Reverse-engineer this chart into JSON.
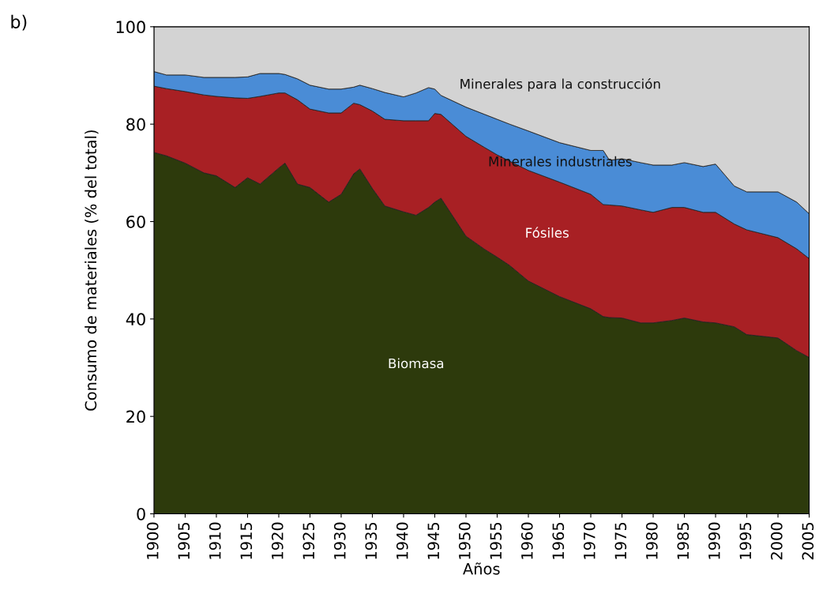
{
  "chart_data": {
    "type": "area",
    "stacked": true,
    "xlabel": "Años",
    "ylabel": "Consumo de materiales (% del total)",
    "annotations": [
      "b)"
    ],
    "x": [
      1900,
      1902,
      1905,
      1908,
      1910,
      1913,
      1915,
      1917,
      1920,
      1921,
      1923,
      1925,
      1928,
      1930,
      1932,
      1933,
      1935,
      1937,
      1940,
      1942,
      1944,
      1945,
      1946,
      1950,
      1953,
      1955,
      1957,
      1960,
      1965,
      1970,
      1972,
      1973,
      1975,
      1978,
      1980,
      1983,
      1985,
      1988,
      1990,
      1993,
      1995,
      2000,
      2003,
      2005
    ],
    "xlim": [
      1900,
      2005
    ],
    "xticks": [
      1900,
      1905,
      1910,
      1915,
      1920,
      1925,
      1930,
      1935,
      1940,
      1945,
      1950,
      1955,
      1960,
      1965,
      1970,
      1975,
      1980,
      1985,
      1990,
      1995,
      2000,
      2005
    ],
    "ylim": [
      0,
      100
    ],
    "yticks": [
      0,
      20,
      40,
      60,
      80,
      100
    ],
    "grid": false,
    "legend": false,
    "series": [
      {
        "name": "Biomasa",
        "color": "#2d3a0c",
        "values": [
          74.2,
          73.5,
          72.0,
          70.0,
          69.4,
          67.0,
          69.0,
          67.7,
          71.0,
          72.0,
          67.7,
          67.0,
          64.0,
          65.6,
          69.8,
          70.8,
          66.8,
          63.2,
          62.0,
          61.3,
          62.9,
          64.0,
          64.8,
          57.0,
          54.3,
          52.7,
          51.0,
          47.8,
          44.6,
          42.1,
          40.5,
          40.3,
          40.2,
          39.2,
          39.2,
          39.7,
          40.2,
          39.4,
          39.2,
          38.4,
          36.8,
          36.1,
          33.5,
          32.1
        ]
      },
      {
        "name": "Fósiles",
        "color": "#a82024",
        "values": [
          13.6,
          13.8,
          14.7,
          16.0,
          16.3,
          18.4,
          16.3,
          18.0,
          15.4,
          14.4,
          17.3,
          16.1,
          18.3,
          16.7,
          14.5,
          13.2,
          15.9,
          17.8,
          18.7,
          19.4,
          17.8,
          18.2,
          17.2,
          20.5,
          20.9,
          21.0,
          21.4,
          22.7,
          23.5,
          23.5,
          23.0,
          23.1,
          23.0,
          23.2,
          22.7,
          23.2,
          22.7,
          22.5,
          22.7,
          21.1,
          21.5,
          20.6,
          20.9,
          20.3
        ]
      },
      {
        "name": "Minerales industriales",
        "color": "#4a8cd6",
        "values": [
          3.0,
          2.8,
          3.4,
          3.6,
          3.9,
          4.2,
          4.4,
          4.7,
          4.0,
          3.8,
          4.3,
          4.9,
          4.9,
          4.9,
          3.3,
          4.0,
          4.6,
          5.5,
          4.9,
          5.7,
          6.8,
          5.0,
          3.9,
          6.0,
          6.8,
          7.3,
          7.6,
          8.1,
          8.1,
          9.0,
          11.1,
          9.2,
          9.7,
          9.7,
          9.7,
          8.7,
          9.2,
          9.4,
          9.9,
          7.8,
          7.8,
          9.4,
          9.6,
          9.2
        ]
      },
      {
        "name": "Minerales para la construcción",
        "color": "#d3d3d3",
        "values": [
          9.2,
          9.9,
          9.9,
          10.4,
          10.4,
          10.4,
          10.3,
          9.6,
          9.6,
          9.8,
          10.7,
          12.0,
          12.8,
          12.8,
          12.4,
          12.0,
          12.7,
          13.5,
          14.4,
          13.6,
          12.5,
          12.8,
          14.1,
          16.5,
          18.0,
          19.0,
          20.0,
          21.4,
          23.8,
          25.4,
          25.4,
          27.4,
          27.1,
          27.9,
          28.4,
          28.4,
          27.9,
          28.7,
          28.2,
          32.7,
          33.9,
          33.9,
          36.0,
          38.4
        ]
      }
    ]
  }
}
